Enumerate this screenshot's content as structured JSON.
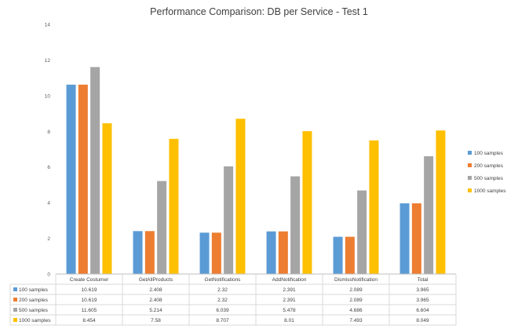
{
  "chart_data": {
    "type": "bar",
    "title": "Performance Comparison: DB per Service - Test 1",
    "categories": [
      "Create Costumer",
      "GetAllProducts",
      "GetNotifications",
      "AddNotification",
      "DismissNotification",
      "Total"
    ],
    "series": [
      {
        "name": "100 samples",
        "color": "#5b9bd5",
        "values": [
          10.619,
          2.408,
          2.32,
          2.391,
          2.089,
          3.965
        ],
        "labels": [
          "10.619",
          "2.408",
          "2.32",
          "2.391",
          "2.089",
          "3.965"
        ]
      },
      {
        "name": "200 samples",
        "color": "#ed7d31",
        "values": [
          10.619,
          2.408,
          2.32,
          2.391,
          2.089,
          3.965
        ],
        "labels": [
          "10.619",
          "2.408",
          "2.32",
          "2.391",
          "2.089",
          "3.965"
        ]
      },
      {
        "name": "500 samples",
        "color": "#a5a5a5",
        "values": [
          11.605,
          5.214,
          6.039,
          5.478,
          4.686,
          6.604
        ],
        "labels": [
          "11.605",
          "5.214",
          "6.039",
          "5.478",
          "4.686",
          "6.604"
        ]
      },
      {
        "name": "1000 samples",
        "color": "#ffc000",
        "values": [
          8.454,
          7.58,
          8.707,
          8.01,
          7.493,
          8.049
        ],
        "labels": [
          "8.454",
          "7.58",
          "8.707",
          "8.01",
          "7.493",
          "8.049"
        ]
      }
    ],
    "ylim": [
      0,
      14
    ],
    "yticks": [
      "0",
      "2",
      "4",
      "6",
      "8",
      "10",
      "12",
      "14"
    ],
    "grid": false,
    "legend_position": "right",
    "data_table": true
  }
}
